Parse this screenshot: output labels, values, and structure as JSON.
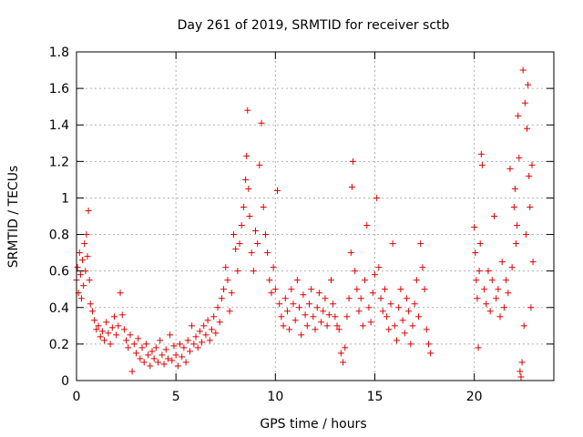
{
  "chart_data": {
    "type": "scatter",
    "title": "Day 261 of 2019, SRMTID for receiver sctb",
    "xlabel": "GPS time / hours",
    "ylabel": "SRMTID / TECUs",
    "xlim": [
      0,
      24
    ],
    "ylim": [
      0,
      1.8
    ],
    "xticks": [
      0,
      5,
      10,
      15,
      20
    ],
    "xtick_labels": [
      "0",
      "5",
      "10",
      "15",
      "20"
    ],
    "yticks": [
      0,
      0.2,
      0.4,
      0.6,
      0.8,
      1.0,
      1.2,
      1.4,
      1.6,
      1.8
    ],
    "ytick_labels": [
      "0",
      "0.2",
      "0.4",
      "0.6",
      "0.8",
      "1",
      "1.2",
      "1.4",
      "1.6",
      "1.8"
    ],
    "grid": true,
    "marker": "+",
    "color": "#e00000",
    "series": [
      {
        "name": "SRMTID",
        "points": [
          [
            0.0,
            0.55
          ],
          [
            0.05,
            0.62
          ],
          [
            0.1,
            0.48
          ],
          [
            0.15,
            0.7
          ],
          [
            0.2,
            0.58
          ],
          [
            0.25,
            0.45
          ],
          [
            0.3,
            0.66
          ],
          [
            0.35,
            0.52
          ],
          [
            0.4,
            0.75
          ],
          [
            0.45,
            0.6
          ],
          [
            0.5,
            0.8
          ],
          [
            0.55,
            0.68
          ],
          [
            0.6,
            0.93
          ],
          [
            0.65,
            0.55
          ],
          [
            0.7,
            0.42
          ],
          [
            0.8,
            0.38
          ],
          [
            0.9,
            0.33
          ],
          [
            1.0,
            0.28
          ],
          [
            1.1,
            0.3
          ],
          [
            1.2,
            0.24
          ],
          [
            1.3,
            0.27
          ],
          [
            1.4,
            0.22
          ],
          [
            1.5,
            0.32
          ],
          [
            1.6,
            0.26
          ],
          [
            1.7,
            0.2
          ],
          [
            1.8,
            0.29
          ],
          [
            1.9,
            0.35
          ],
          [
            2.0,
            0.25
          ],
          [
            2.1,
            0.3
          ],
          [
            2.2,
            0.48
          ],
          [
            2.3,
            0.36
          ],
          [
            2.4,
            0.28
          ],
          [
            2.5,
            0.22
          ],
          [
            2.6,
            0.18
          ],
          [
            2.7,
            0.25
          ],
          [
            2.8,
            0.05
          ],
          [
            2.9,
            0.2
          ],
          [
            3.0,
            0.15
          ],
          [
            3.1,
            0.23
          ],
          [
            3.2,
            0.12
          ],
          [
            3.3,
            0.18
          ],
          [
            3.4,
            0.1
          ],
          [
            3.5,
            0.2
          ],
          [
            3.6,
            0.14
          ],
          [
            3.7,
            0.08
          ],
          [
            3.8,
            0.16
          ],
          [
            3.9,
            0.12
          ],
          [
            4.0,
            0.18
          ],
          [
            4.1,
            0.1
          ],
          [
            4.2,
            0.22
          ],
          [
            4.3,
            0.14
          ],
          [
            4.4,
            0.09
          ],
          [
            4.5,
            0.17
          ],
          [
            4.6,
            0.12
          ],
          [
            4.7,
            0.25
          ],
          [
            4.8,
            0.11
          ],
          [
            4.9,
            0.19
          ],
          [
            5.0,
            0.14
          ],
          [
            5.1,
            0.08
          ],
          [
            5.2,
            0.2
          ],
          [
            5.3,
            0.13
          ],
          [
            5.4,
            0.18
          ],
          [
            5.5,
            0.1
          ],
          [
            5.6,
            0.22
          ],
          [
            5.7,
            0.16
          ],
          [
            5.8,
            0.3
          ],
          [
            5.9,
            0.2
          ],
          [
            6.0,
            0.24
          ],
          [
            6.1,
            0.18
          ],
          [
            6.2,
            0.27
          ],
          [
            6.3,
            0.21
          ],
          [
            6.4,
            0.3
          ],
          [
            6.5,
            0.25
          ],
          [
            6.6,
            0.33
          ],
          [
            6.7,
            0.22
          ],
          [
            6.8,
            0.28
          ],
          [
            6.9,
            0.35
          ],
          [
            7.0,
            0.26
          ],
          [
            7.1,
            0.4
          ],
          [
            7.2,
            0.32
          ],
          [
            7.3,
            0.45
          ],
          [
            7.4,
            0.5
          ],
          [
            7.5,
            0.62
          ],
          [
            7.6,
            0.55
          ],
          [
            7.7,
            0.38
          ],
          [
            7.8,
            0.48
          ],
          [
            7.9,
            0.8
          ],
          [
            8.0,
            0.72
          ],
          [
            8.1,
            0.6
          ],
          [
            8.2,
            0.75
          ],
          [
            8.3,
            0.85
          ],
          [
            8.4,
            0.95
          ],
          [
            8.5,
            1.1
          ],
          [
            8.55,
            1.23
          ],
          [
            8.6,
            1.48
          ],
          [
            8.65,
            1.05
          ],
          [
            8.7,
            0.9
          ],
          [
            8.8,
            0.7
          ],
          [
            8.9,
            0.6
          ],
          [
            9.0,
            0.82
          ],
          [
            9.1,
            0.75
          ],
          [
            9.2,
            1.18
          ],
          [
            9.3,
            1.41
          ],
          [
            9.4,
            0.95
          ],
          [
            9.5,
            0.8
          ],
          [
            9.6,
            0.7
          ],
          [
            9.7,
            0.55
          ],
          [
            9.8,
            0.48
          ],
          [
            9.9,
            0.62
          ],
          [
            10.0,
            0.5
          ],
          [
            10.1,
            1.04
          ],
          [
            10.2,
            0.42
          ],
          [
            10.3,
            0.35
          ],
          [
            10.4,
            0.3
          ],
          [
            10.5,
            0.45
          ],
          [
            10.6,
            0.38
          ],
          [
            10.7,
            0.28
          ],
          [
            10.8,
            0.5
          ],
          [
            10.9,
            0.42
          ],
          [
            11.0,
            0.33
          ],
          [
            11.1,
            0.55
          ],
          [
            11.2,
            0.4
          ],
          [
            11.3,
            0.25
          ],
          [
            11.4,
            0.47
          ],
          [
            11.5,
            0.36
          ],
          [
            11.6,
            0.3
          ],
          [
            11.7,
            0.42
          ],
          [
            11.8,
            0.5
          ],
          [
            11.9,
            0.35
          ],
          [
            12.0,
            0.28
          ],
          [
            12.1,
            0.4
          ],
          [
            12.2,
            0.48
          ],
          [
            12.3,
            0.32
          ],
          [
            12.4,
            0.38
          ],
          [
            12.5,
            0.45
          ],
          [
            12.6,
            0.3
          ],
          [
            12.7,
            0.36
          ],
          [
            12.8,
            0.55
          ],
          [
            12.9,
            0.42
          ],
          [
            13.0,
            0.35
          ],
          [
            13.1,
            0.3
          ],
          [
            13.2,
            0.28
          ],
          [
            13.3,
            0.15
          ],
          [
            13.4,
            0.1
          ],
          [
            13.5,
            0.18
          ],
          [
            13.6,
            0.35
          ],
          [
            13.7,
            0.45
          ],
          [
            13.8,
            0.7
          ],
          [
            13.85,
            1.06
          ],
          [
            13.9,
            1.2
          ],
          [
            14.0,
            0.6
          ],
          [
            14.1,
            0.5
          ],
          [
            14.2,
            0.38
          ],
          [
            14.3,
            0.45
          ],
          [
            14.4,
            0.3
          ],
          [
            14.5,
            0.55
          ],
          [
            14.6,
            0.85
          ],
          [
            14.7,
            0.4
          ],
          [
            14.8,
            0.32
          ],
          [
            14.9,
            0.48
          ],
          [
            15.0,
            0.58
          ],
          [
            15.1,
            1.0
          ],
          [
            15.2,
            0.62
          ],
          [
            15.3,
            0.45
          ],
          [
            15.4,
            0.38
          ],
          [
            15.5,
            0.5
          ],
          [
            15.6,
            0.35
          ],
          [
            15.7,
            0.28
          ],
          [
            15.8,
            0.42
          ],
          [
            15.9,
            0.75
          ],
          [
            16.0,
            0.3
          ],
          [
            16.1,
            0.22
          ],
          [
            16.2,
            0.4
          ],
          [
            16.3,
            0.5
          ],
          [
            16.4,
            0.33
          ],
          [
            16.5,
            0.26
          ],
          [
            16.6,
            0.45
          ],
          [
            16.7,
            0.38
          ],
          [
            16.8,
            0.2
          ],
          [
            16.9,
            0.3
          ],
          [
            17.0,
            0.42
          ],
          [
            17.1,
            0.55
          ],
          [
            17.2,
            0.35
          ],
          [
            17.3,
            0.75
          ],
          [
            17.4,
            0.62
          ],
          [
            17.5,
            0.5
          ],
          [
            17.6,
            0.28
          ],
          [
            17.7,
            0.2
          ],
          [
            17.8,
            0.15
          ],
          [
            20.0,
            0.84
          ],
          [
            20.05,
            0.7
          ],
          [
            20.1,
            0.55
          ],
          [
            20.15,
            0.45
          ],
          [
            20.2,
            0.18
          ],
          [
            20.25,
            0.6
          ],
          [
            20.3,
            0.75
          ],
          [
            20.35,
            1.24
          ],
          [
            20.4,
            1.18
          ],
          [
            20.5,
            0.5
          ],
          [
            20.6,
            0.42
          ],
          [
            20.7,
            0.6
          ],
          [
            20.8,
            0.38
          ],
          [
            20.9,
            0.55
          ],
          [
            21.0,
            0.9
          ],
          [
            21.1,
            0.45
          ],
          [
            21.2,
            0.5
          ],
          [
            21.3,
            0.35
          ],
          [
            21.4,
            0.65
          ],
          [
            21.5,
            0.4
          ],
          [
            21.6,
            0.55
          ],
          [
            21.7,
            0.48
          ],
          [
            21.8,
            1.16
          ],
          [
            21.9,
            0.62
          ],
          [
            22.0,
            0.95
          ],
          [
            22.05,
            1.05
          ],
          [
            22.1,
            0.75
          ],
          [
            22.15,
            0.85
          ],
          [
            22.2,
            1.45
          ],
          [
            22.25,
            1.22
          ],
          [
            22.3,
            0.05
          ],
          [
            22.35,
            0.02
          ],
          [
            22.4,
            0.1
          ],
          [
            22.45,
            1.7
          ],
          [
            22.5,
            0.3
          ],
          [
            22.55,
            1.52
          ],
          [
            22.6,
            0.8
          ],
          [
            22.65,
            1.38
          ],
          [
            22.7,
            1.62
          ],
          [
            22.75,
            1.12
          ],
          [
            22.8,
            0.95
          ],
          [
            22.85,
            0.4
          ],
          [
            22.9,
            1.18
          ],
          [
            22.95,
            0.65
          ]
        ]
      }
    ]
  }
}
